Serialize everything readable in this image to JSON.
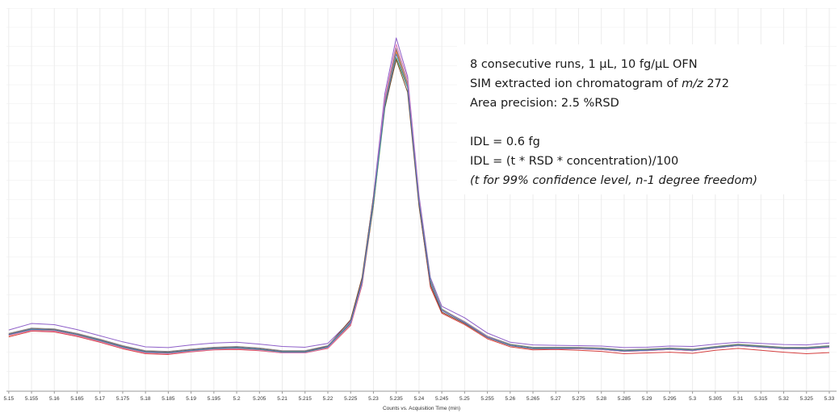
{
  "chart_data": {
    "type": "line",
    "xlabel": "Counts vs. Acquisition Time (min)",
    "xlim": [
      5.1495,
      5.3316
    ],
    "ylim": [
      0,
      100
    ],
    "xticks": [
      5.15,
      5.155,
      5.16,
      5.165,
      5.17,
      5.175,
      5.18,
      5.185,
      5.19,
      5.195,
      5.2,
      5.205,
      5.21,
      5.215,
      5.22,
      5.225,
      5.23,
      5.235,
      5.24,
      5.245,
      5.25,
      5.255,
      5.26,
      5.265,
      5.27,
      5.275,
      5.28,
      5.285,
      5.29,
      5.295,
      5.3,
      5.305,
      5.31,
      5.315,
      5.32,
      5.325,
      5.33
    ],
    "grid": true,
    "x": [
      5.15,
      5.155,
      5.16,
      5.165,
      5.17,
      5.175,
      5.18,
      5.185,
      5.19,
      5.195,
      5.2,
      5.205,
      5.21,
      5.215,
      5.22,
      5.225,
      5.2275,
      5.23,
      5.2325,
      5.235,
      5.2375,
      5.24,
      5.2425,
      5.245,
      5.25,
      5.255,
      5.26,
      5.265,
      5.27,
      5.275,
      5.28,
      5.285,
      5.29,
      5.295,
      5.3,
      5.305,
      5.31,
      5.315,
      5.32,
      5.325,
      5.33
    ],
    "series": [
      {
        "color": "#8e5fc8",
        "values": [
          15.8,
          17.5,
          17.2,
          15.9,
          14.3,
          12.7,
          11.4,
          11.2,
          11.9,
          12.4,
          12.6,
          12.1,
          11.5,
          11.3,
          12.3,
          18.2,
          28.9,
          50.8,
          77.6,
          92.2,
          82.1,
          51.0,
          29.5,
          22.0,
          19.0,
          15.0,
          12.6,
          11.9,
          11.8,
          11.7,
          11.6,
          11.2,
          11.3,
          11.6,
          11.5,
          12.1,
          12.6,
          12.3,
          12.0,
          11.9,
          12.4
        ]
      },
      {
        "color": "#d64040",
        "values": [
          14.0,
          15.5,
          15.3,
          14.1,
          12.6,
          10.9,
          9.6,
          9.4,
          10.1,
          10.6,
          10.7,
          10.4,
          9.8,
          9.8,
          11.0,
          17.0,
          27.5,
          48.2,
          75.3,
          89.0,
          80.1,
          48.6,
          27.0,
          20.2,
          17.2,
          13.5,
          11.4,
          10.6,
          10.7,
          10.5,
          10.2,
          9.6,
          9.8,
          10.0,
          9.7,
          10.5,
          11.0,
          10.5,
          10.0,
          9.6,
          9.9
        ]
      },
      {
        "color": "#f0953a",
        "values": [
          14.3,
          15.8,
          15.6,
          14.4,
          12.9,
          11.2,
          9.9,
          9.7,
          10.3,
          10.8,
          11.0,
          10.6,
          9.9,
          9.9,
          11.2,
          17.3,
          27.9,
          49.0,
          74.9,
          88.5,
          80.0,
          49.8,
          28.6,
          21.1,
          17.9,
          14.1,
          11.9,
          11.1,
          11.0,
          11.1,
          10.9,
          10.4,
          10.6,
          10.9,
          10.6,
          11.3,
          11.9,
          11.5,
          11.1,
          11.1,
          11.5
        ]
      },
      {
        "color": "#4f9a4f",
        "values": [
          14.5,
          15.9,
          15.8,
          14.6,
          13.0,
          11.3,
          10.0,
          9.8,
          10.4,
          10.9,
          11.1,
          10.7,
          10.0,
          10.0,
          11.3,
          17.5,
          28.0,
          48.5,
          73.8,
          87.0,
          79.2,
          50.2,
          28.9,
          21.3,
          17.8,
          14.0,
          11.9,
          11.1,
          11.2,
          11.0,
          10.9,
          10.5,
          10.7,
          11.0,
          10.7,
          11.4,
          12.0,
          11.6,
          11.2,
          11.1,
          11.6
        ]
      },
      {
        "color": "#7a4a2a",
        "values": [
          14.7,
          16.1,
          15.9,
          14.7,
          13.2,
          11.5,
          10.2,
          10.0,
          10.6,
          11.1,
          11.3,
          10.9,
          10.2,
          10.2,
          11.6,
          18.5,
          29.5,
          50.5,
          74.2,
          86.5,
          78.0,
          48.2,
          27.6,
          20.5,
          17.5,
          13.8,
          11.7,
          10.9,
          10.9,
          10.9,
          10.7,
          10.2,
          10.4,
          10.7,
          10.4,
          11.1,
          11.7,
          11.3,
          10.9,
          10.9,
          11.3
        ]
      },
      {
        "color": "#888888",
        "values": [
          14.9,
          16.3,
          16.1,
          14.9,
          13.4,
          11.7,
          10.4,
          10.2,
          10.8,
          11.3,
          11.5,
          11.1,
          10.4,
          10.4,
          11.7,
          17.9,
          28.5,
          49.8,
          75.8,
          89.5,
          80.4,
          49.9,
          28.6,
          21.2,
          18.0,
          14.2,
          12.1,
          11.3,
          11.3,
          11.3,
          11.1,
          10.6,
          10.8,
          11.1,
          10.8,
          11.5,
          12.1,
          11.7,
          11.3,
          11.3,
          11.7
        ]
      },
      {
        "color": "#e07ab8",
        "values": [
          14.4,
          15.7,
          15.5,
          14.3,
          12.8,
          11.1,
          9.8,
          9.6,
          10.2,
          10.7,
          10.9,
          10.5,
          9.8,
          9.8,
          11.1,
          17.2,
          27.8,
          49.6,
          76.4,
          90.5,
          81.3,
          50.3,
          28.4,
          21.0,
          17.8,
          14.0,
          11.8,
          11.0,
          10.9,
          10.9,
          10.7,
          10.2,
          10.4,
          10.7,
          10.4,
          11.1,
          11.7,
          11.3,
          10.9,
          10.8,
          11.2
        ]
      },
      {
        "color": "#4a78c0",
        "values": [
          14.6,
          16.0,
          15.8,
          14.6,
          13.1,
          11.4,
          10.1,
          9.9,
          10.5,
          11.0,
          11.2,
          10.8,
          10.1,
          10.1,
          11.4,
          17.7,
          28.3,
          49.4,
          74.7,
          88.0,
          79.4,
          49.4,
          28.3,
          20.9,
          17.7,
          13.9,
          11.8,
          11.0,
          11.0,
          11.0,
          10.8,
          10.3,
          10.5,
          10.8,
          10.5,
          11.2,
          11.8,
          11.4,
          11.0,
          11.0,
          11.4
        ]
      }
    ],
    "annotations": [
      {
        "parts": [
          {
            "text": "8 consecutive runs, 1 µL, 10 fg/µL OFN"
          }
        ]
      },
      {
        "parts": [
          {
            "text": "SIM extracted ion chromatogram of "
          },
          {
            "text": "m/z",
            "style": "italic"
          },
          {
            "text": " 272"
          }
        ]
      },
      {
        "parts": [
          {
            "text": "Area precision: 2.5 %RSD"
          }
        ],
        "color": "#f0853a"
      },
      {
        "parts": [
          {
            "text": "IDL = 0.6 fg"
          }
        ],
        "color": "#f0853a"
      },
      {
        "parts": [
          {
            "text": "IDL = (t * RSD * concentration)/100"
          }
        ]
      },
      {
        "parts": [
          {
            "text": "(t for 99% confidence level, n-1 degree freedom)",
            "style": "italic"
          }
        ]
      }
    ]
  }
}
